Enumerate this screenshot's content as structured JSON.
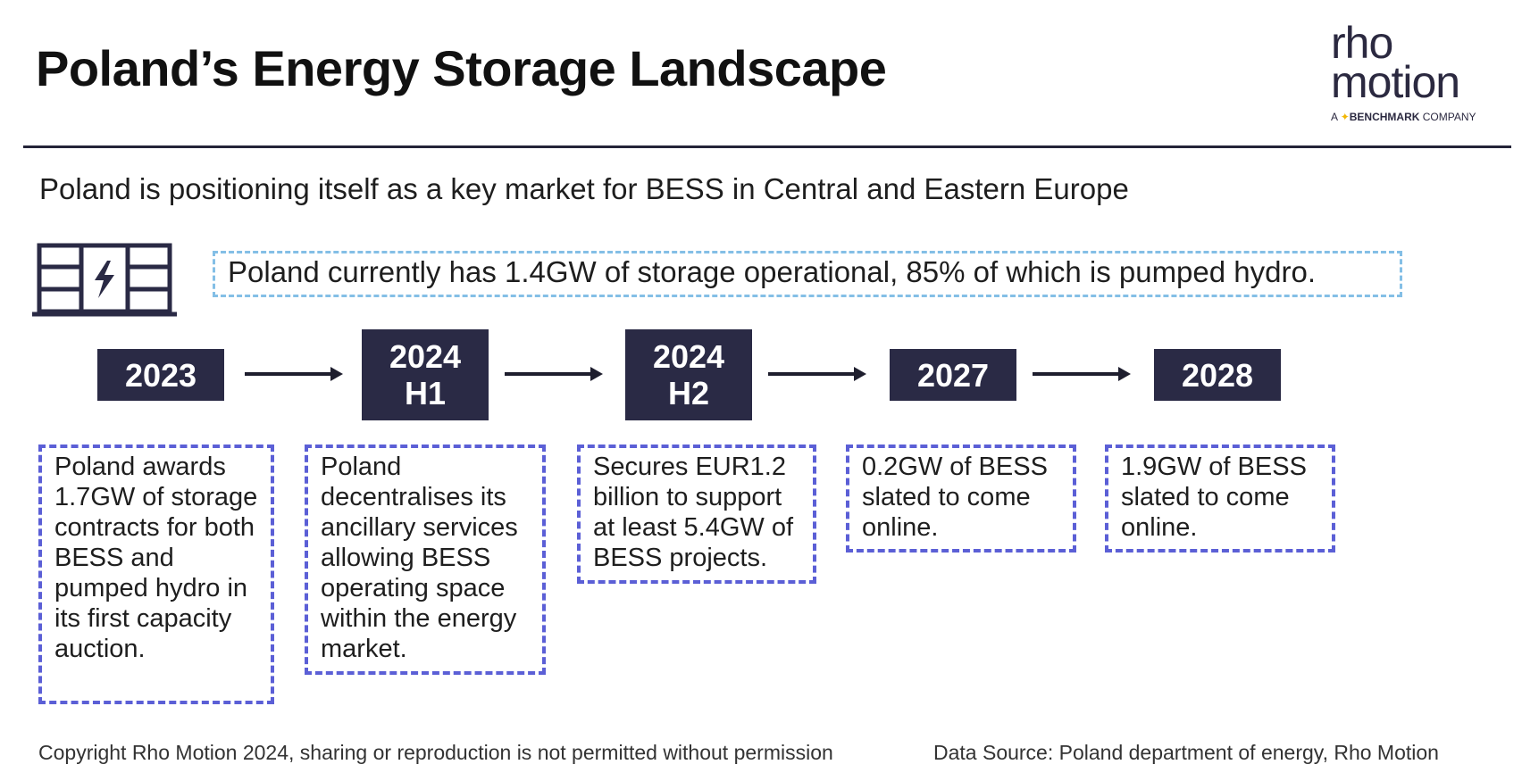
{
  "header": {
    "title": "Poland’s Energy Storage Landscape",
    "logo": {
      "line1": "rho",
      "line2": "motion",
      "tag_prefix": "A",
      "tag_brand": "BENCHMARK",
      "tag_suffix": "COMPANY"
    }
  },
  "subtitle": "Poland is positioning itself as a key market for BESS in Central and Eastern Europe",
  "banner": "Poland currently has 1.4GW of storage operational, 85% of which is pumped hydro.",
  "timeline": [
    {
      "year": "2023",
      "period": "",
      "text": "Poland awards 1.7GW of storage contracts for both BESS and pumped hydro in its first capacity auction."
    },
    {
      "year": "2024",
      "period": "H1",
      "text": "Poland decentralises its ancillary services allowing BESS operating space within the energy market."
    },
    {
      "year": "2024",
      "period": "H2",
      "text": "Secures EUR1.2 billion to support at least 5.4GW of BESS projects."
    },
    {
      "year": "2027",
      "period": "",
      "text": "0.2GW of BESS slated to come online."
    },
    {
      "year": "2028",
      "period": "",
      "text": "1.9GW of BESS slated to come online."
    }
  ],
  "footer": {
    "copyright": "Copyright Rho Motion 2024, sharing or reproduction is not permitted without permission",
    "source": "Data Source: Poland department of energy, Rho Motion"
  },
  "colors": {
    "navy": "#2a2a45",
    "card_border": "#5b5fd6",
    "banner_border": "#84bfe6"
  },
  "icons": [
    "battery-storage-icon",
    "arrow-right-icon"
  ]
}
